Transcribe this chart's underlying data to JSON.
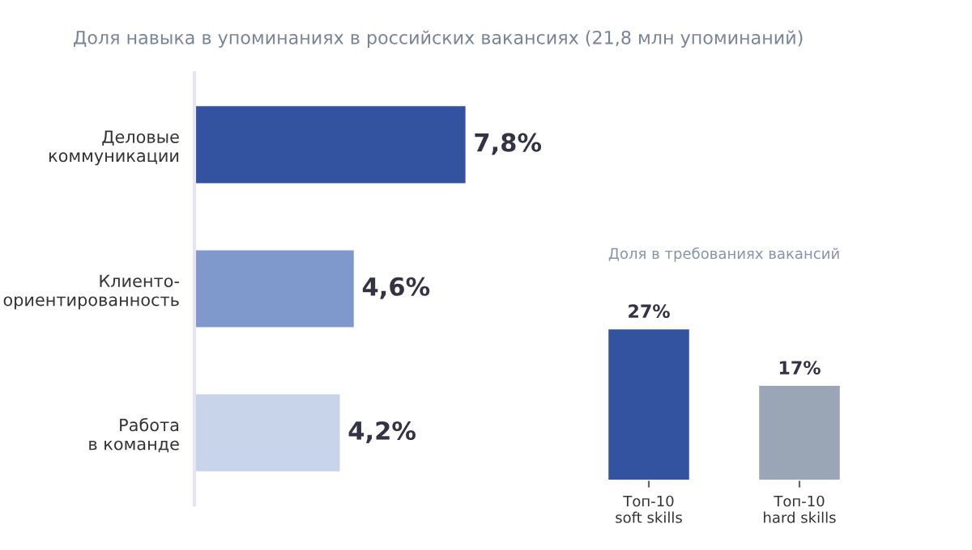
{
  "chart_data": [
    {
      "type": "bar",
      "orientation": "horizontal",
      "subtitle": "Доля навыка в упоминаниях в российских вакансиях (21,8 млн упоминаний)",
      "categories": [
        "Деловые\nкоммуникации",
        "Клиенто-\nориентированность",
        "Работа\nв команде"
      ],
      "values": [
        7.8,
        4.6,
        4.2
      ],
      "colors": [
        "#3353a0",
        "#7f99cc",
        "#c7d4ea"
      ],
      "value_labels": [
        "7,8%",
        "4,6%",
        "4,2%"
      ],
      "tick_labels": "y"
    },
    {
      "type": "bar",
      "title": "Доля в требованиях вакансий",
      "categories": [
        "Топ-10\nsoft skills",
        "Топ-10\nhard skills"
      ],
      "values": [
        27,
        17
      ],
      "colors": [
        "#3353a0",
        "#9aa5b5"
      ],
      "value_labels": [
        "27%",
        "17%"
      ],
      "tick_labels": "x"
    }
  ]
}
